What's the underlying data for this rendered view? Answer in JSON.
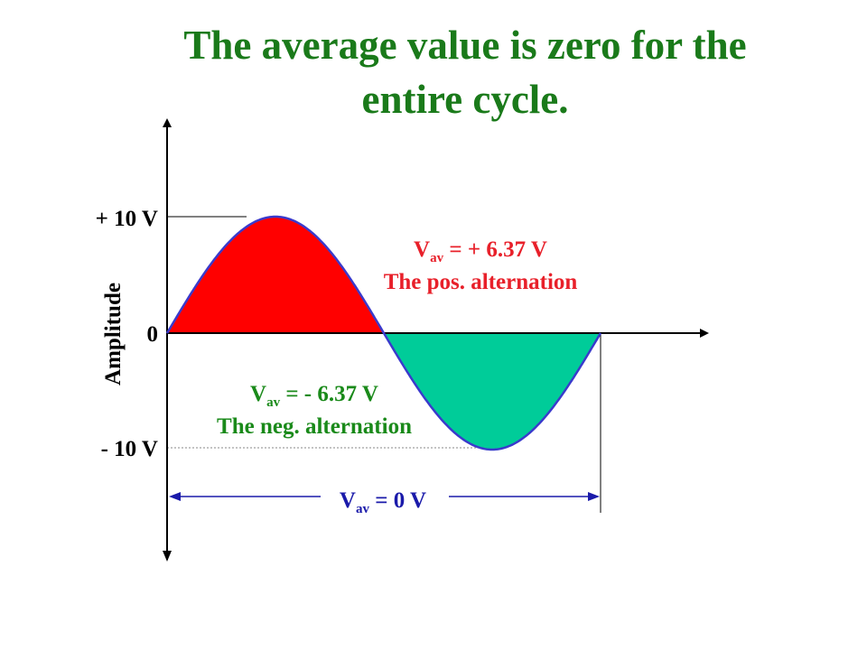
{
  "title": {
    "line1": "The average value is zero for the",
    "line2": "entire cycle."
  },
  "axis": {
    "ylabel": "Amplitude",
    "tick_pos": "+ 10 V",
    "tick_zero": "0",
    "tick_neg": "- 10 V"
  },
  "positive": {
    "v": "V",
    "sub": "av",
    "value": " = + 6.37 V",
    "caption": "The pos. alternation",
    "color": "#ff0000",
    "text_color": "#e8202a"
  },
  "negative": {
    "v": "V",
    "sub": "av",
    "value": " = - 6.37 V",
    "caption": "The neg. alternation",
    "color": "#00cc99",
    "text_color": "#1a8a1a"
  },
  "total": {
    "v": "V",
    "sub": "av",
    "value": " = 0 V",
    "color": "#1a1aaa"
  },
  "chart_data": {
    "type": "line",
    "ylabel": "Amplitude",
    "ylim": [
      -10,
      10
    ],
    "y_ticks": [
      "- 10 V",
      "0",
      "+ 10 V"
    ],
    "series": [
      {
        "values_description_free": true,
        "peak": 10,
        "trough": -10,
        "cycles": 1
      }
    ],
    "averages": {
      "positive_alternation": 6.37,
      "negative_alternation": -6.37,
      "full_cycle": 0
    }
  }
}
